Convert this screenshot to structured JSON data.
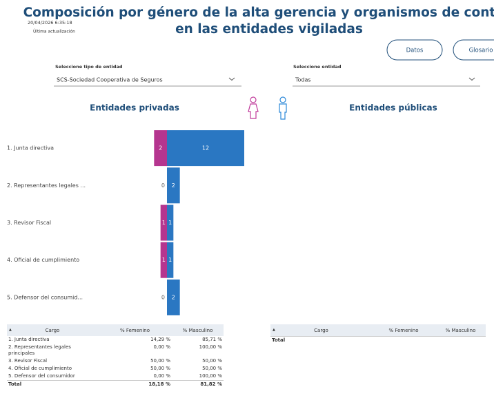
{
  "header": {
    "title": [
      "Composición por género de la alta gerencia y organismos de control",
      "en las entidades vigiladas"
    ],
    "timestamp": "20/04/2026 6:35:18",
    "timestamp_label": "Última actualización"
  },
  "buttons": [
    "Datos",
    "Glosario"
  ],
  "filters": [
    {
      "label": "Seleccione tipo de entidad",
      "value": "SCS-Sociedad Cooperativa de Seguros"
    },
    {
      "label": "Seleccione entidad",
      "value": "Todas"
    }
  ],
  "chart_data": {
    "type": "butterfly",
    "title": "Entidades privadas",
    "categories": [
      "1. Junta directiva",
      "2. Representantes legales ...",
      "3. Revisor Fiscal",
      "4. Oficial de cumplimiento",
      "5. Defensor del consumid..."
    ],
    "series": [
      {
        "color": "#b5358f",
        "values": [
          2,
          0,
          1,
          1,
          0
        ]
      },
      {
        "color": "#2a77c2",
        "values": [
          12,
          2,
          1,
          1,
          2
        ]
      }
    ]
  },
  "public_title": "Entidades públicas",
  "tables": [
    {
      "columns": [
        "Cargo",
        "% Femenino",
        "% Masculino"
      ],
      "rows": [
        [
          "1. Junta directiva",
          "14,29 %",
          "85,71 %"
        ],
        [
          "2. Representantes legales principales",
          "0,00 %",
          "100,00 %"
        ],
        [
          "3. Revisor Fiscal",
          "50,00 %",
          "50,00 %"
        ],
        [
          "4. Oficial de cumplimiento",
          "50,00 %",
          "50,00 %"
        ],
        [
          "5. Defensor del consumidor",
          "0,00 %",
          "100,00 %"
        ]
      ],
      "total": [
        "Total",
        "18,18 %",
        "81,82 %"
      ]
    },
    {
      "columns": [
        "Cargo",
        "% Femenino",
        "% Masculino"
      ],
      "rows": [],
      "total": [
        "Total"
      ]
    }
  ]
}
